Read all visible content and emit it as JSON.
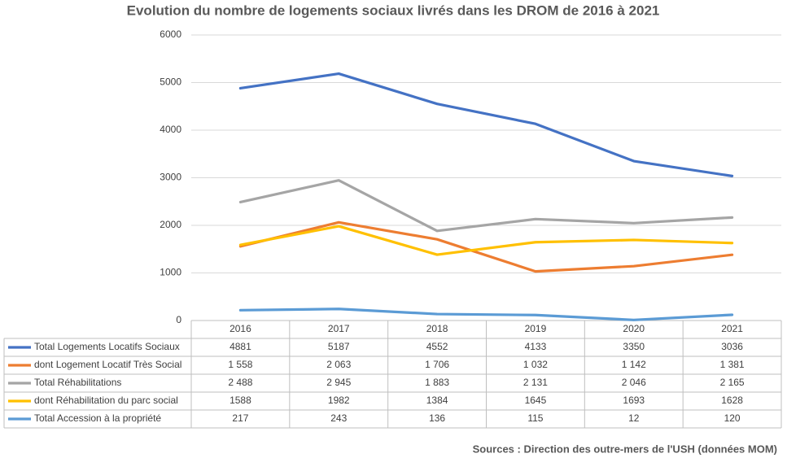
{
  "chart_data": {
    "type": "line",
    "title": "Evolution du nombre de logements sociaux livrés dans les DROM de 2016 à 2021",
    "categories": [
      "2016",
      "2017",
      "2018",
      "2019",
      "2020",
      "2021"
    ],
    "series": [
      {
        "name": "Total Logements Locatifs Sociaux",
        "color": "#4472c4",
        "values": [
          4881,
          5187,
          4552,
          4133,
          3350,
          3036
        ]
      },
      {
        "name": "dont Logement Locatif Très Social",
        "color": "#ed7d31",
        "values": [
          1558,
          2063,
          1706,
          1032,
          1142,
          1381
        ],
        "value_labels": [
          "1 558",
          "2 063",
          "1 706",
          "1 032",
          "1 142",
          "1 381"
        ]
      },
      {
        "name": "Total Réhabilitations",
        "color": "#a5a5a5",
        "values": [
          2488,
          2945,
          1883,
          2131,
          2046,
          2165
        ],
        "value_labels": [
          "2 488",
          "2 945",
          "1 883",
          "2 131",
          "2 046",
          "2 165"
        ]
      },
      {
        "name": "dont Réhabilitation du parc social",
        "color": "#ffc000",
        "values": [
          1588,
          1982,
          1384,
          1645,
          1693,
          1628
        ]
      },
      {
        "name": "Total Accession à la propriété",
        "color": "#5b9bd5",
        "values": [
          217,
          243,
          136,
          115,
          12,
          120
        ]
      }
    ],
    "ylim": [
      0,
      6000
    ],
    "yticks": [
      0,
      1000,
      2000,
      3000,
      4000,
      5000,
      6000
    ],
    "grid": true,
    "source": "Sources : Direction des outre-mers de l'USH (données MOM)"
  }
}
